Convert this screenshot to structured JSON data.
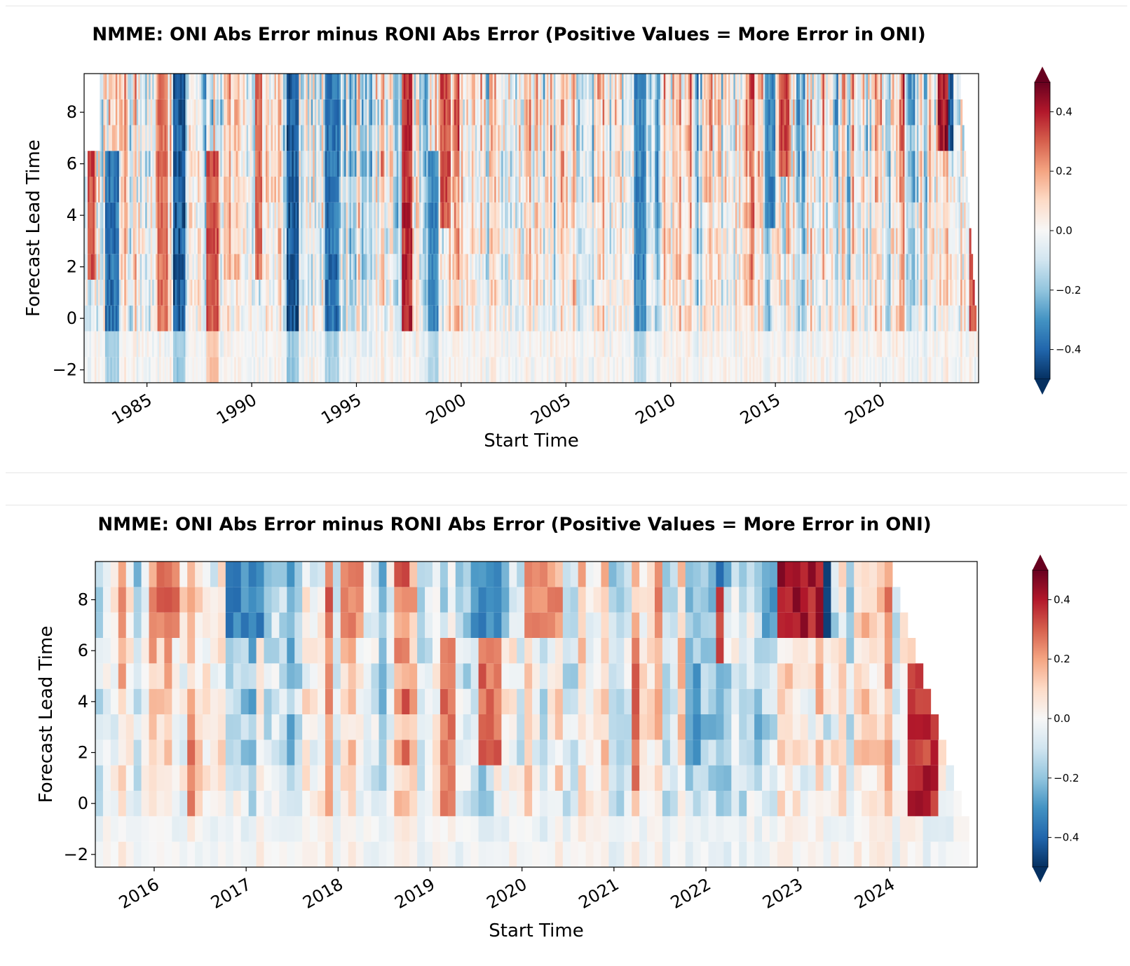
{
  "chart_data": [
    {
      "type": "heatmap",
      "title": "NMME: ONI Abs Error minus RONI Abs Error (Positive Values = More Error in ONI)",
      "xlabel": "Start Time",
      "ylabel": "Forecast Lead Time",
      "x_range": [
        1982.0,
        2024.7
      ],
      "y_range": [
        -2.5,
        9.5
      ],
      "x_ticks": [
        1985,
        1990,
        1995,
        2000,
        2005,
        2010,
        2015,
        2020
      ],
      "x_tick_labels": [
        "1985",
        "1990",
        "1995",
        "2000",
        "2005",
        "2010",
        "2015",
        "2020"
      ],
      "y_ticks": [
        -2,
        0,
        2,
        4,
        6,
        8
      ],
      "y_tick_labels": [
        "−2",
        "0",
        "2",
        "4",
        "6",
        "8"
      ],
      "colorbar": {
        "cmap": "RdBu_r",
        "range": [
          -0.5,
          0.5
        ],
        "extend": "both",
        "ticks": [
          0.4,
          0.2,
          0.0,
          -0.2,
          -0.4
        ],
        "tick_labels": [
          "0.4",
          "0.2",
          "0.0",
          "−0.2",
          "−0.4"
        ]
      },
      "data_start_year": 1982.0,
      "data_end_year": 2024.67,
      "seed": 17,
      "leads_full_coverage_start": 1982.0,
      "top_leads_start": 1982.75,
      "notable_bands": [
        {
          "x": 1982.1,
          "w": 0.4,
          "v": 0.35,
          "leads": [
            2,
            6
          ]
        },
        {
          "x": 1983.0,
          "w": 0.6,
          "v": -0.4,
          "leads": [
            -2,
            6
          ]
        },
        {
          "x": 1985.5,
          "w": 0.5,
          "v": 0.3,
          "leads": [
            0,
            9
          ]
        },
        {
          "x": 1986.2,
          "w": 0.6,
          "v": -0.45,
          "leads": [
            -2,
            9
          ]
        },
        {
          "x": 1987.8,
          "w": 0.6,
          "v": 0.35,
          "leads": [
            -2,
            6
          ]
        },
        {
          "x": 1990.1,
          "w": 0.4,
          "v": 0.3,
          "leads": [
            2,
            9
          ]
        },
        {
          "x": 1991.6,
          "w": 0.6,
          "v": -0.45,
          "leads": [
            -2,
            9
          ]
        },
        {
          "x": 1993.5,
          "w": 0.6,
          "v": -0.4,
          "leads": [
            -2,
            9
          ]
        },
        {
          "x": 1997.1,
          "w": 0.5,
          "v": 0.4,
          "leads": [
            0,
            9
          ]
        },
        {
          "x": 1998.4,
          "w": 0.5,
          "v": -0.35,
          "leads": [
            -2,
            6
          ]
        },
        {
          "x": 1999.0,
          "w": 0.5,
          "v": 0.35,
          "leads": [
            4,
            9
          ]
        },
        {
          "x": 2008.2,
          "w": 0.6,
          "v": -0.35,
          "leads": [
            -2,
            9
          ]
        },
        {
          "x": 2014.5,
          "w": 0.5,
          "v": -0.35,
          "leads": [
            4,
            9
          ]
        },
        {
          "x": 2015.1,
          "w": 0.5,
          "v": 0.35,
          "leads": [
            6,
            9
          ]
        },
        {
          "x": 2022.7,
          "w": 0.7,
          "v": 0.45,
          "leads": [
            7,
            9
          ]
        },
        {
          "x": 2023.2,
          "w": 0.3,
          "v": -0.45,
          "leads": [
            7,
            9
          ]
        },
        {
          "x": 2024.2,
          "w": 0.4,
          "v": 0.35,
          "leads": [
            0,
            5
          ]
        }
      ]
    },
    {
      "type": "heatmap",
      "title": "NMME: ONI Abs Error minus RONI Abs Error (Positive Values = More Error in ONI)",
      "xlabel": "Start Time",
      "ylabel": "Forecast Lead Time",
      "x_range": [
        2015.36,
        2024.95
      ],
      "y_range": [
        -2.5,
        9.5
      ],
      "x_ticks": [
        2016,
        2017,
        2018,
        2019,
        2020,
        2021,
        2022,
        2023,
        2024
      ],
      "x_tick_labels": [
        "2016",
        "2017",
        "2018",
        "2019",
        "2020",
        "2021",
        "2022",
        "2023",
        "2024"
      ],
      "y_ticks": [
        -2,
        0,
        2,
        4,
        6,
        8
      ],
      "y_tick_labels": [
        "−2",
        "0",
        "2",
        "4",
        "6",
        "8"
      ],
      "colorbar": {
        "cmap": "RdBu_r",
        "range": [
          -0.5,
          0.5
        ],
        "extend": "both",
        "ticks": [
          0.4,
          0.2,
          0.0,
          -0.2,
          -0.4
        ],
        "tick_labels": [
          "0.4",
          "0.2",
          "0.0",
          "−0.2",
          "−0.4"
        ]
      },
      "data_start_year": 2015.36,
      "data_end_year": 2024.87,
      "seed": 91,
      "notable_bands": [
        {
          "x": 2015.95,
          "w": 0.25,
          "v": 0.3,
          "leads": [
            7,
            9
          ]
        },
        {
          "x": 2016.3,
          "w": 0.1,
          "v": 0.3,
          "leads": [
            0,
            3
          ]
        },
        {
          "x": 2016.75,
          "w": 0.4,
          "v": -0.35,
          "leads": [
            7,
            9
          ]
        },
        {
          "x": 2018.0,
          "w": 0.25,
          "v": 0.25,
          "leads": [
            7,
            9
          ]
        },
        {
          "x": 2019.1,
          "w": 0.15,
          "v": 0.3,
          "leads": [
            0,
            6
          ]
        },
        {
          "x": 2019.4,
          "w": 0.35,
          "v": -0.35,
          "leads": [
            7,
            9
          ]
        },
        {
          "x": 2019.5,
          "w": 0.25,
          "v": 0.3,
          "leads": [
            2,
            6
          ]
        },
        {
          "x": 2019.95,
          "w": 0.35,
          "v": 0.25,
          "leads": [
            7,
            9
          ]
        },
        {
          "x": 2021.15,
          "w": 0.1,
          "v": 0.3,
          "leads": [
            1,
            5
          ]
        },
        {
          "x": 2021.7,
          "w": 0.2,
          "v": -0.3,
          "leads": [
            2,
            5
          ]
        },
        {
          "x": 2022.05,
          "w": 0.1,
          "v": 0.35,
          "leads": [
            6,
            8
          ]
        },
        {
          "x": 2022.55,
          "w": 0.25,
          "v": -0.3,
          "leads": [
            7,
            9
          ]
        },
        {
          "x": 2022.75,
          "w": 0.45,
          "v": 0.45,
          "leads": [
            7,
            9
          ]
        },
        {
          "x": 2023.2,
          "w": 0.15,
          "v": -0.45,
          "leads": [
            7,
            9
          ]
        },
        {
          "x": 2024.15,
          "w": 0.3,
          "v": 0.4,
          "leads": [
            0,
            5
          ]
        }
      ]
    }
  ]
}
